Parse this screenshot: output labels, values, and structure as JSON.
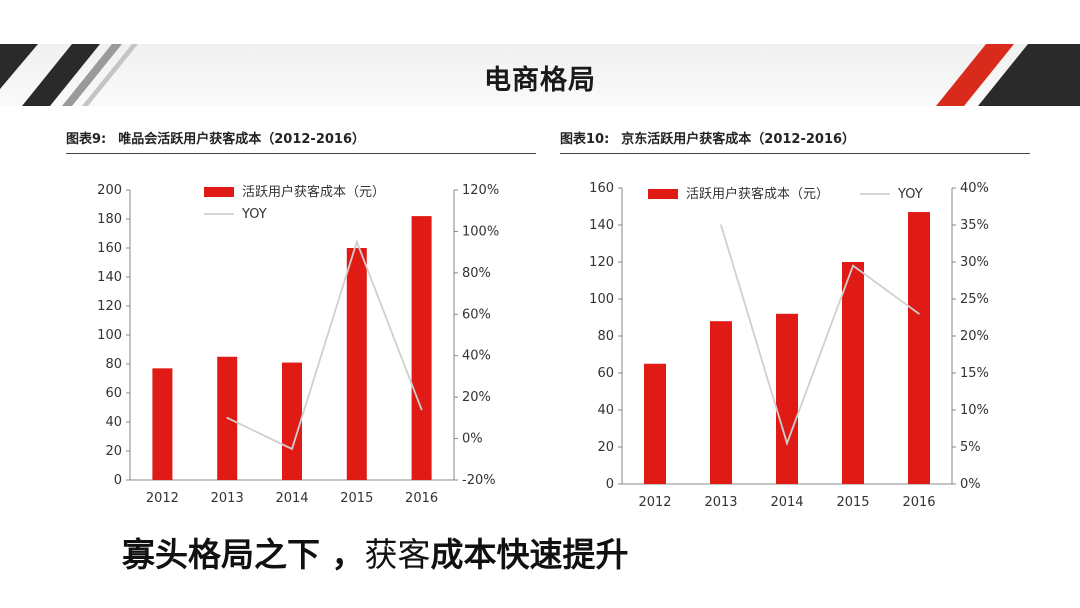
{
  "page": {
    "title": "电商格局",
    "conclusion": {
      "part1": "寡头格局之下 ，",
      "part2": "获客",
      "part3": "成本快速提升"
    }
  },
  "colors": {
    "bar": "#e01b16",
    "yoy_line": "#cfcfcf",
    "accent": "#d92b1c"
  },
  "chart_data": [
    {
      "caption_id": "图表9:",
      "caption_text": "唯品会活跃用户获客成本（2012-2016）",
      "type": "bar",
      "categories": [
        "2012",
        "2013",
        "2014",
        "2015",
        "2016"
      ],
      "series": [
        {
          "name": "活跃用户获客成本（元）",
          "type": "bar",
          "axis": "left",
          "values": [
            77,
            85,
            81,
            160,
            182
          ]
        },
        {
          "name": "YOY",
          "type": "line",
          "axis": "right",
          "values": [
            null,
            10,
            -5,
            95,
            14
          ]
        }
      ],
      "yleft": {
        "min": 0,
        "max": 200,
        "ticks": [
          "0",
          "20",
          "40",
          "60",
          "80",
          "100",
          "120",
          "140",
          "160",
          "180",
          "200"
        ]
      },
      "yright": {
        "min": -20,
        "max": 120,
        "ticks": [
          "-20%",
          "0%",
          "20%",
          "40%",
          "60%",
          "80%",
          "100%",
          "120%"
        ]
      },
      "legend_position": "top"
    },
    {
      "caption_id": "图表10:",
      "caption_text": "京东活跃用户获客成本（2012-2016）",
      "type": "bar",
      "categories": [
        "2012",
        "2013",
        "2014",
        "2015",
        "2016"
      ],
      "series": [
        {
          "name": "活跃用户获客成本（元）",
          "type": "bar",
          "axis": "left",
          "values": [
            65,
            88,
            92,
            120,
            147
          ]
        },
        {
          "name": "YOY",
          "type": "line",
          "axis": "right",
          "values": [
            null,
            35,
            5.5,
            29.5,
            23
          ]
        }
      ],
      "yleft": {
        "min": 0,
        "max": 160,
        "ticks": [
          "0",
          "20",
          "40",
          "60",
          "80",
          "100",
          "120",
          "140",
          "160"
        ]
      },
      "yright": {
        "min": 0,
        "max": 40,
        "ticks": [
          "0%",
          "5%",
          "10%",
          "15%",
          "20%",
          "25%",
          "30%",
          "35%",
          "40%"
        ]
      },
      "legend_position": "top"
    }
  ]
}
